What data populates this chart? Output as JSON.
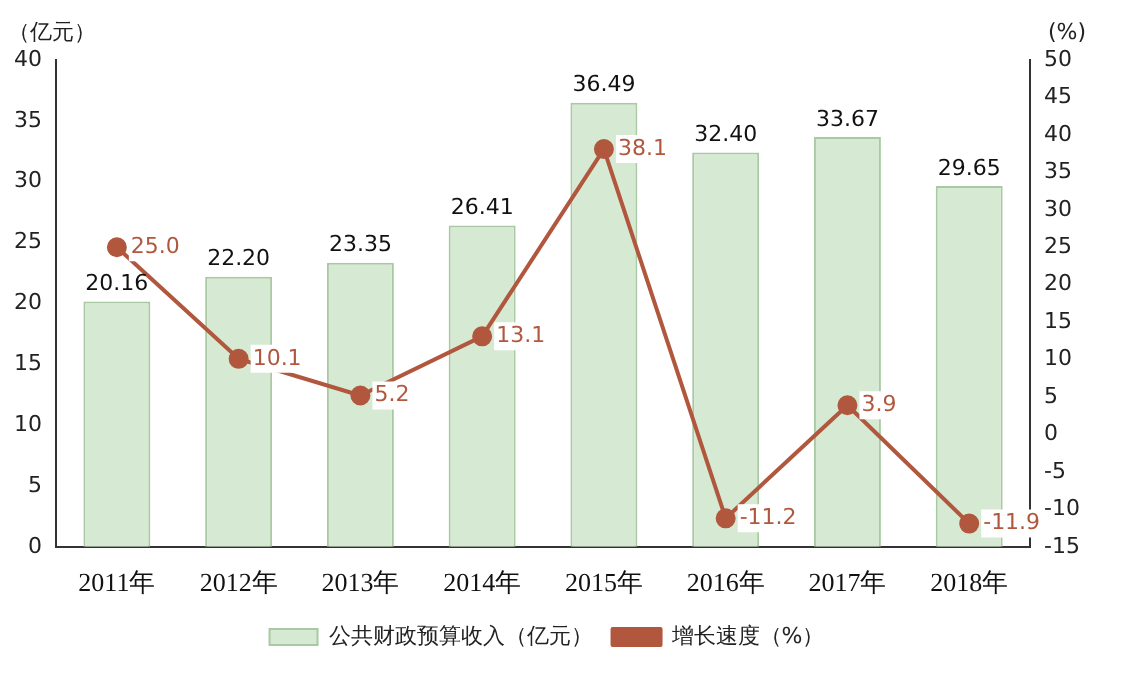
{
  "chart_data": {
    "type": "bar",
    "ylabel": "（亿元）",
    "y2label": "(%)",
    "categories": [
      "2011年",
      "2012年",
      "2013年",
      "2014年",
      "2015年",
      "2016年",
      "2017年",
      "2018年"
    ],
    "series": [
      {
        "name": "公共财政预算收入（亿元）",
        "color": "#d6e9d2",
        "values": [
          20.16,
          22.2,
          23.35,
          26.41,
          36.49,
          32.4,
          33.67,
          29.65
        ],
        "value_labels": [
          "20.16",
          "22.20",
          "23.35",
          "26.41",
          "36.49",
          "32.40",
          "33.67",
          "29.65"
        ]
      },
      {
        "name": "增长速度（%）",
        "type": "line",
        "axis": "y2",
        "color": "#b0573e",
        "marker": "circle",
        "values": [
          25.0,
          10.1,
          5.2,
          13.1,
          38.1,
          -11.2,
          3.9,
          -11.9
        ],
        "value_labels": [
          "25.0",
          "10.1",
          "5.2",
          "13.1",
          "38.1",
          "-11.2",
          "3.9",
          "-11.9"
        ]
      }
    ],
    "ylim": [
      0,
      40
    ],
    "yticks": [
      0,
      5,
      10,
      15,
      20,
      25,
      30,
      35,
      40
    ],
    "y2lim": [
      -15,
      50
    ],
    "y2ticks": [
      -15,
      -10,
      -5,
      0,
      5,
      10,
      15,
      20,
      25,
      30,
      35,
      40,
      45,
      50
    ],
    "grid": false,
    "legend": "bottom"
  }
}
